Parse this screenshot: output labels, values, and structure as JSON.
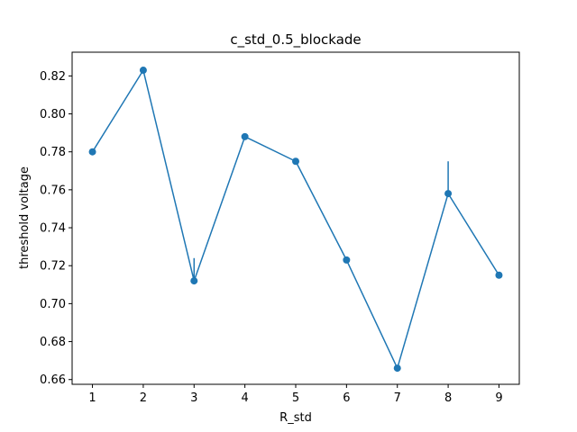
{
  "chart_data": {
    "type": "line",
    "title": "c_std_0.5_blockade",
    "xlabel": "R_std",
    "ylabel": "threshold voltage",
    "xlim": [
      0.6,
      9.4
    ],
    "ylim": [
      0.6575,
      0.8325
    ],
    "x_ticks": [
      1,
      2,
      3,
      4,
      5,
      6,
      7,
      8,
      9
    ],
    "y_ticks": [
      0.66,
      0.68,
      0.7,
      0.72,
      0.74,
      0.76,
      0.78,
      0.8,
      0.82
    ],
    "y_tick_labels": [
      "0.66",
      "0.68",
      "0.70",
      "0.72",
      "0.74",
      "0.76",
      "0.78",
      "0.80",
      "0.82"
    ],
    "grid": false,
    "series": [
      {
        "color": "#1f77b4",
        "marker": "circle",
        "x": [
          1,
          2,
          3,
          4,
          5,
          6,
          7,
          8,
          9
        ],
        "y": [
          0.78,
          0.823,
          0.712,
          0.788,
          0.775,
          0.723,
          0.666,
          0.758,
          0.715
        ],
        "error_upper": [
          0.78,
          0.823,
          0.724,
          0.788,
          0.775,
          0.723,
          0.666,
          0.775,
          0.715
        ],
        "error_lower": [
          0.78,
          0.823,
          0.712,
          0.788,
          0.775,
          0.723,
          0.666,
          0.758,
          0.715
        ]
      }
    ]
  }
}
